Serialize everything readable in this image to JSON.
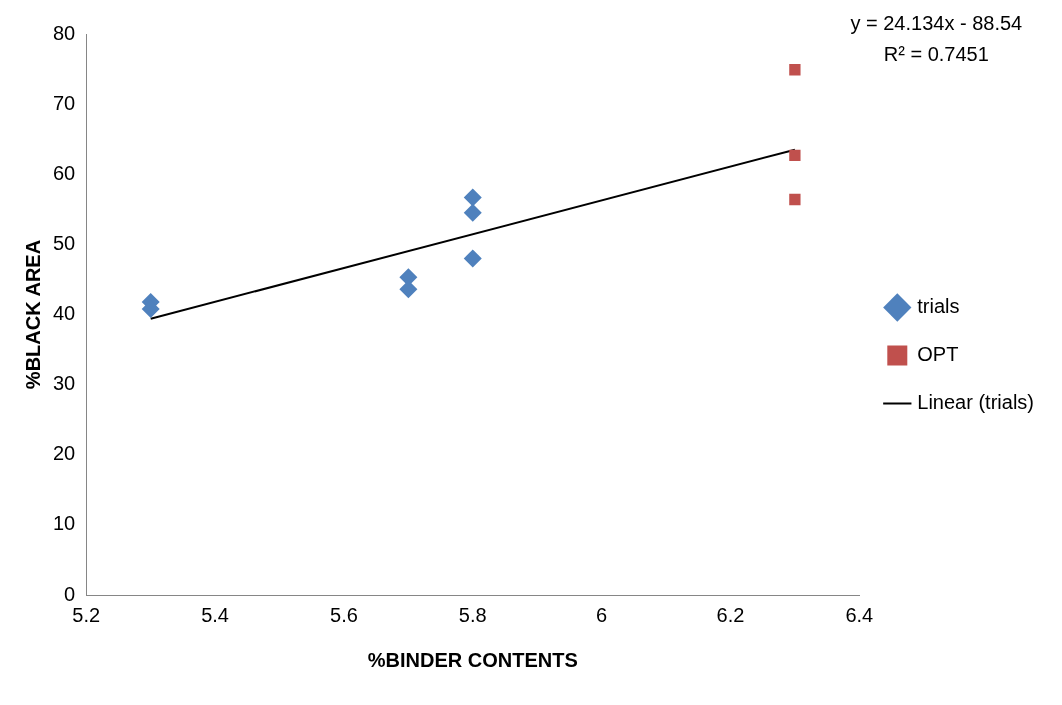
{
  "chart_data": {
    "type": "scatter",
    "xlabel": "%BINDER CONTENTS",
    "ylabel": "%BLACK AREA",
    "xlim": [
      5.2,
      6.4
    ],
    "xticks": [
      5.2,
      5.4,
      5.6,
      5.8,
      6,
      6.2,
      6.4
    ],
    "ylim": [
      0,
      80
    ],
    "yticks": [
      0,
      10,
      20,
      30,
      40,
      50,
      60,
      70,
      80
    ],
    "grid": false,
    "legend": "right",
    "series": [
      {
        "name": "trials",
        "color": "#4f81bd",
        "marker": "diamond",
        "x": [
          5.3,
          5.3,
          5.7,
          5.7,
          5.8,
          5.8,
          5.8
        ],
        "values": [
          41.8,
          40.8,
          45.3,
          43.6,
          56.7,
          54.5,
          48.0
        ]
      },
      {
        "name": "OPT",
        "color": "#c0504d",
        "marker": "square",
        "x": [
          6.3,
          6.3,
          6.3
        ],
        "values": [
          74.9,
          62.7,
          56.4
        ]
      },
      {
        "name": "Linear (trials)",
        "type": "line",
        "color": "#000000",
        "marker": "none",
        "line_style": "solid",
        "x": [
          5.3,
          6.3
        ],
        "values": [
          39.4,
          63.5
        ]
      }
    ],
    "annotations": [
      "y = 24.134x - 88.54",
      "R² = 0.7451"
    ]
  }
}
